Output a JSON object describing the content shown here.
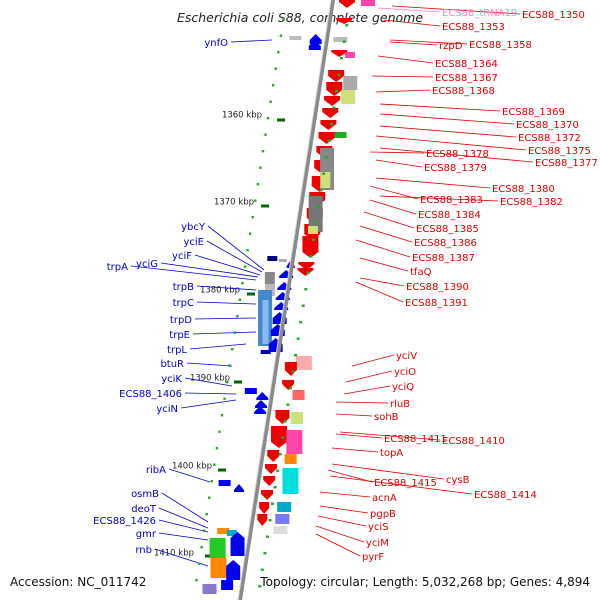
{
  "title": "Escherichia coli S88, complete genome",
  "footer": {
    "accession": "Accession: NC_011742",
    "topology": "Topology: circular; Length: 5,032,268 bp; Genes: 4,894"
  },
  "colors": {
    "axis": "#8a8a8a",
    "left_label": "#0000cc",
    "right_label": "#dd0000",
    "tick_green": "#22aa22",
    "kbp_mark": "#006600"
  },
  "kbp_labels": [
    "1360 kbp",
    "1370 kbp",
    "1380 kbp",
    "1390 kbp",
    "1400 kbp",
    "1410 kbp"
  ],
  "left_genes": [
    "ynfO",
    "ybcY",
    "yciE",
    "yciF",
    "yciG",
    "trpA",
    "trpB",
    "trpC",
    "trpD",
    "trpE",
    "trpL",
    "btuR",
    "yciK",
    "ECS88_1406",
    "yciN",
    "ribA",
    "osmB",
    "deoT",
    "ECS88_1426",
    "gmr",
    "rnb"
  ],
  "right_genes": [
    "ECS88_tRNA19",
    "ECS88_1350",
    "ECS88_1353",
    "rzpD",
    "ECS88_1358",
    "ECS88_1364",
    "ECS88_1367",
    "ECS88_1368",
    "ECS88_1369",
    "ECS88_1370",
    "ECS88_1372",
    "ECS88_1375",
    "ECS88_1377",
    "ECS88_1378",
    "ECS88_1379",
    "ECS88_1380",
    "ECS88_1383",
    "ECS88_1382",
    "ECS88_1384",
    "ECS88_1385",
    "ECS88_1386",
    "ECS88_1387",
    "tfaQ",
    "ECS88_1390",
    "ECS88_1391",
    "yciV",
    "yciO",
    "yciQ",
    "rluB",
    "sohB",
    "ECS88_1411",
    "ECS88_1410",
    "topA",
    "cysB",
    "ECS88_1415",
    "ECS88_1414",
    "acnA",
    "pgpB",
    "yciS",
    "yciM",
    "pyrF"
  ]
}
